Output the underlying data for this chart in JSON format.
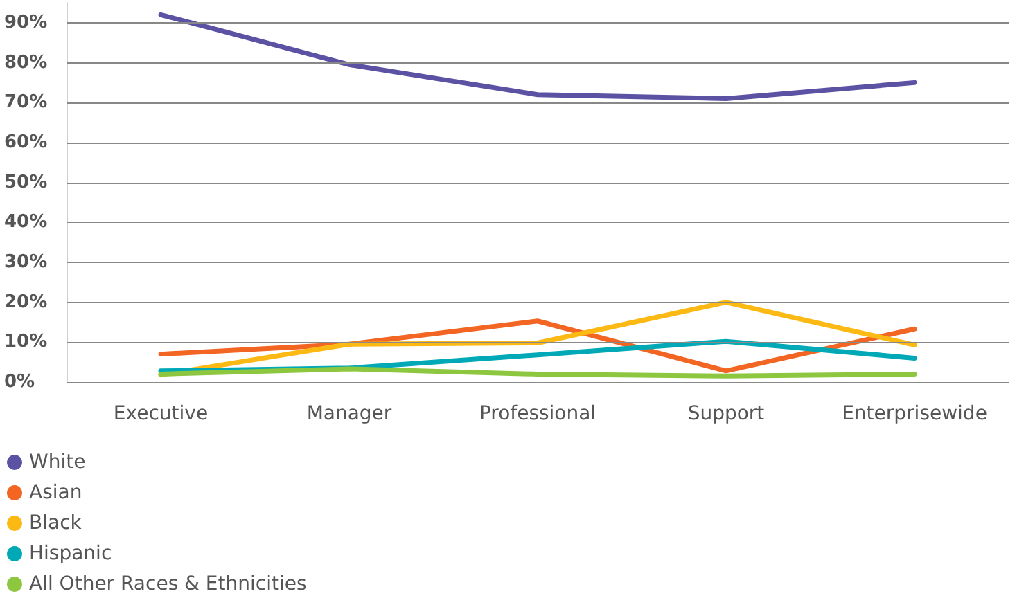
{
  "chart_data": {
    "type": "line",
    "categories": [
      "Executive",
      "Manager",
      "Professional",
      "Support",
      "Enterprisewide"
    ],
    "series": [
      {
        "name": "White",
        "color": "#5b52a3",
        "values": [
          92,
          79.5,
          72,
          71,
          75
        ]
      },
      {
        "name": "Asian",
        "color": "#f26522",
        "values": [
          7,
          9.5,
          15.3,
          2.8,
          13.3
        ]
      },
      {
        "name": "Black",
        "color": "#fdb913",
        "values": [
          1.8,
          9.5,
          9.8,
          20,
          9.3
        ]
      },
      {
        "name": "Hispanic",
        "color": "#00a9b5",
        "values": [
          2.8,
          3.5,
          6.8,
          10.2,
          6
        ]
      },
      {
        "name": "All Other Races & Ethnicities",
        "color": "#8dc63f",
        "values": [
          2,
          3.3,
          2,
          1.5,
          2
        ]
      }
    ],
    "ylim": [
      0,
      95
    ],
    "yticks": [
      {
        "value": 0,
        "label": "0%"
      },
      {
        "value": 10,
        "label": "10%"
      },
      {
        "value": 20,
        "label": "20%"
      },
      {
        "value": 30,
        "label": "30%"
      },
      {
        "value": 40,
        "label": "40%"
      },
      {
        "value": 50,
        "label": "50%"
      },
      {
        "value": 60,
        "label": "60%"
      },
      {
        "value": 70,
        "label": "70%"
      },
      {
        "value": 80,
        "label": "80%"
      },
      {
        "value": 90,
        "label": "90%"
      }
    ],
    "grid": "y",
    "legend": "bottom left",
    "marker": "none",
    "line_style": "solid"
  }
}
